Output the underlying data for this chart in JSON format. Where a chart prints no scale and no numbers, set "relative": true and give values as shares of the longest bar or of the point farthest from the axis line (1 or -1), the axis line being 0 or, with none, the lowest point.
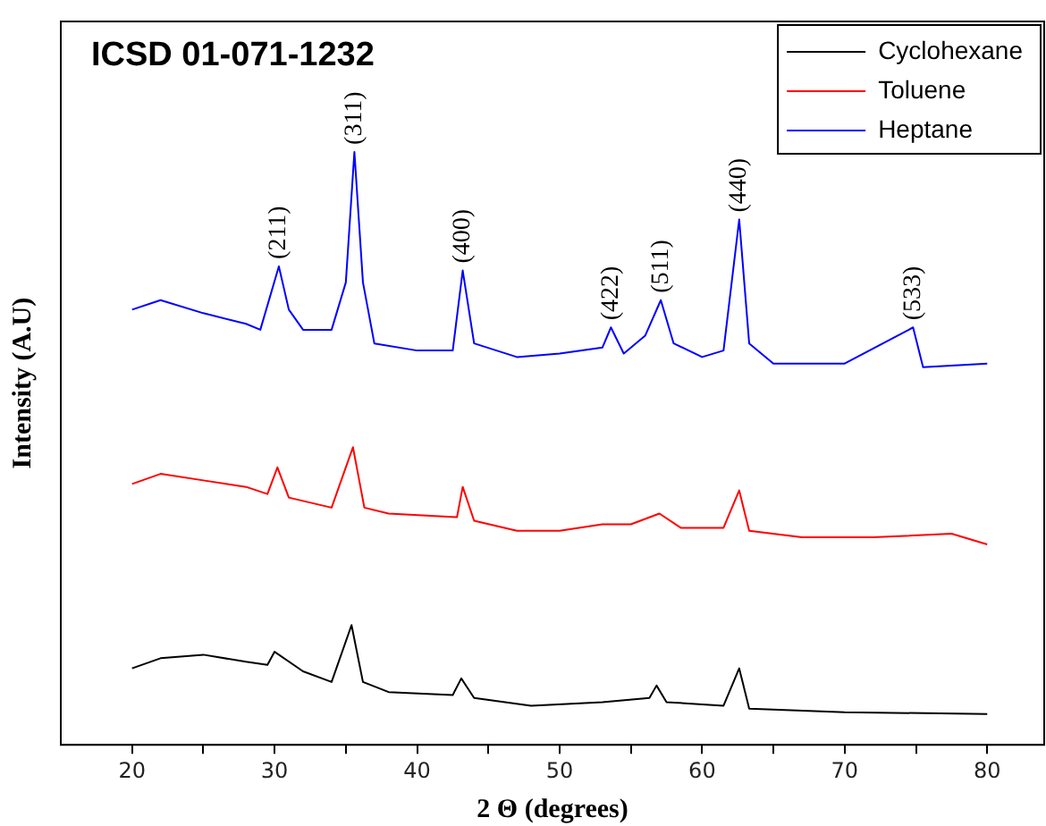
{
  "chart_data": {
    "type": "line",
    "title": "ICSD 01-071-1232",
    "xlabel": "2 Θ (degrees)",
    "ylabel": "Intensity (A.U)",
    "relative": true,
    "tick_labels": "x",
    "legend": "top right",
    "grid": false,
    "marker": "none",
    "line_style": "solid",
    "xlim": [
      15,
      84
    ],
    "xticks": [
      20,
      {
        "value": 25,
        "label": null
      },
      30,
      {
        "value": 35,
        "label": null
      },
      40,
      {
        "value": 45,
        "label": null
      },
      50,
      {
        "value": 55,
        "label": null
      },
      60,
      {
        "value": 65,
        "label": null
      },
      70,
      {
        "value": 75,
        "label": null
      },
      80
    ],
    "series": [
      {
        "name": "Cyclohexane",
        "color": "#000000",
        "x": [
          20,
          22,
          25,
          28,
          29.5,
          30,
          32,
          34,
          35.4,
          36.2,
          38,
          42.5,
          43.1,
          44,
          48,
          53,
          56.3,
          56.8,
          57.5,
          61.5,
          62.6,
          63.3,
          70,
          80
        ],
        "values": [
          0.129,
          0.146,
          0.152,
          0.14,
          0.135,
          0.157,
          0.124,
          0.106,
          0.202,
          0.106,
          0.089,
          0.084,
          0.112,
          0.079,
          0.066,
          0.072,
          0.079,
          0.1,
          0.072,
          0.066,
          0.129,
          0.061,
          0.055,
          0.052
        ]
      },
      {
        "name": "Toluene",
        "color": "#ff0000",
        "x": [
          20,
          22,
          25,
          28,
          29.5,
          30.2,
          31,
          34,
          35.5,
          36.3,
          38,
          42.8,
          43.2,
          44,
          47,
          50,
          53,
          55,
          57,
          58.5,
          61.5,
          62.6,
          63.3,
          67,
          72,
          77.5,
          80
        ],
        "values": [
          0.44,
          0.457,
          0.446,
          0.435,
          0.423,
          0.468,
          0.417,
          0.4,
          0.502,
          0.4,
          0.39,
          0.384,
          0.435,
          0.378,
          0.361,
          0.361,
          0.372,
          0.372,
          0.39,
          0.366,
          0.366,
          0.429,
          0.361,
          0.35,
          0.35,
          0.356,
          0.338
        ]
      },
      {
        "name": "Heptane",
        "color": "#0000ff",
        "x": [
          20,
          22,
          25,
          28,
          29,
          30.3,
          31,
          32,
          34,
          35,
          35.6,
          36.2,
          37,
          40,
          42.5,
          43.2,
          44,
          47,
          50,
          53,
          53.6,
          54.5,
          56,
          57.1,
          58,
          60,
          61.5,
          62.6,
          63.3,
          65,
          70,
          74.8,
          75.5,
          80
        ],
        "values": [
          0.734,
          0.75,
          0.728,
          0.71,
          0.7,
          0.807,
          0.734,
          0.7,
          0.7,
          0.78,
          1,
          0.78,
          0.677,
          0.665,
          0.665,
          0.8,
          0.677,
          0.654,
          0.66,
          0.67,
          0.704,
          0.66,
          0.69,
          0.75,
          0.677,
          0.654,
          0.665,
          0.886,
          0.677,
          0.643,
          0.643,
          0.704,
          0.637,
          0.643
        ]
      }
    ],
    "annotations": [
      {
        "text": "(211)",
        "x": 30.3,
        "y": 0.807
      },
      {
        "text": "(311)",
        "x": 35.6,
        "y": 1
      },
      {
        "text": "(400)",
        "x": 43.2,
        "y": 0.8
      },
      {
        "text": "(422)",
        "x": 53.6,
        "y": 0.704
      },
      {
        "text": "(511)",
        "x": 57.1,
        "y": 0.75
      },
      {
        "text": "(440)",
        "x": 62.6,
        "y": 0.886
      },
      {
        "text": "(533)",
        "x": 74.8,
        "y": 0.704
      }
    ]
  }
}
